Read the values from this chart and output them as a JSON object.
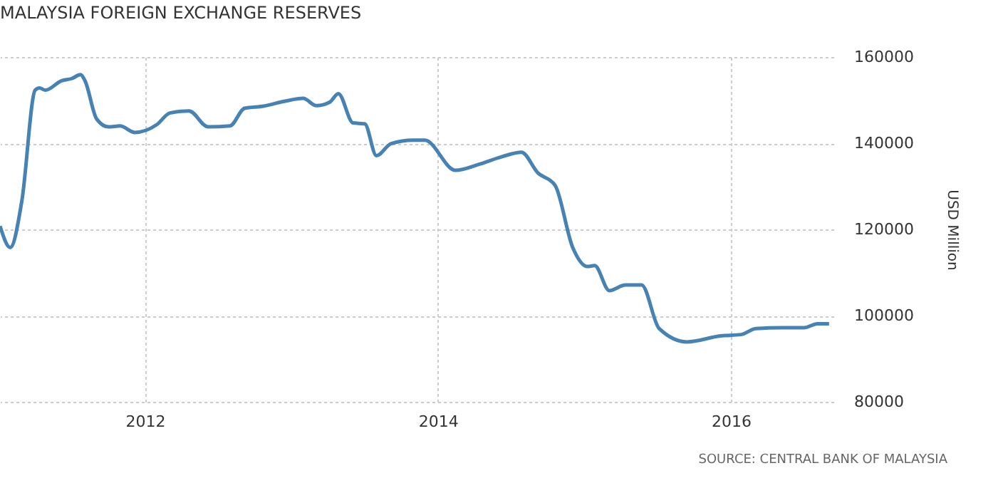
{
  "chart_data": {
    "type": "line",
    "title": "MALAYSIA FOREIGN EXCHANGE RESERVES",
    "ylabel": "USD Million",
    "annotations": [
      "SOURCE: CENTRAL BANK OF MALAYSIA"
    ],
    "x": [
      2011.01,
      2011.08,
      2011.16,
      2011.25,
      2011.28,
      2011.32,
      2011.43,
      2011.5,
      2011.56,
      2011.59,
      2011.67,
      2011.75,
      2011.83,
      2011.93,
      2012.08,
      2012.17,
      2012.3,
      2012.43,
      2012.58,
      2012.68,
      2012.81,
      2012.95,
      2013.08,
      2013.17,
      2013.26,
      2013.32,
      2013.42,
      2013.5,
      2013.58,
      2013.68,
      2013.83,
      2013.91,
      2014.12,
      2014.28,
      2014.43,
      2014.57,
      2014.68,
      2014.8,
      2014.92,
      2015.02,
      2015.07,
      2015.17,
      2015.28,
      2015.39,
      2015.51,
      2015.7,
      2015.93,
      2016.07,
      2016.17,
      2016.35,
      2016.5,
      2016.59,
      2016.67
    ],
    "series": [
      {
        "color": "#4682b4",
        "values": [
          120800,
          115800,
          126800,
          152300,
          152800,
          152300,
          154500,
          155000,
          155900,
          154500,
          145600,
          143800,
          144000,
          142500,
          144300,
          147000,
          147500,
          143800,
          144000,
          148100,
          148600,
          149700,
          150400,
          148700,
          149500,
          151500,
          144700,
          144500,
          137100,
          139900,
          140700,
          140700,
          133700,
          135100,
          136800,
          137900,
          133200,
          130200,
          115800,
          111400,
          111600,
          105800,
          107100,
          107100,
          97000,
          93900,
          95300,
          95600,
          97000,
          97200,
          97200,
          98100,
          98100
        ]
      }
    ],
    "xlim": [
      2011.01,
      2016.7
    ],
    "xticks": [
      2012,
      2014,
      2016
    ],
    "ylim": [
      80000,
      160000
    ],
    "yticks": [
      80000,
      100000,
      120000,
      140000,
      160000
    ],
    "grid": true,
    "legend": false,
    "marker": "none",
    "line_style": "solid"
  }
}
